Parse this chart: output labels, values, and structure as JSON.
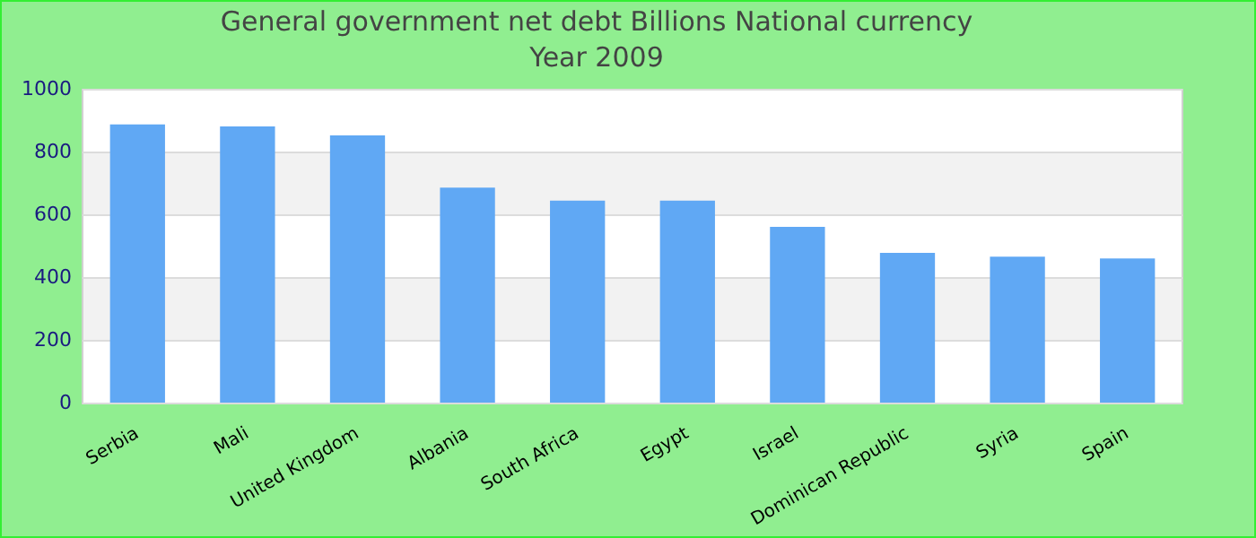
{
  "chart_data": {
    "type": "bar",
    "title": "General government net debt Billions National currency",
    "subtitle": "Year 2009",
    "categories": [
      "Serbia",
      "Mali",
      "United Kingdom",
      "Albania",
      "South Africa",
      "Egypt",
      "Israel",
      "Dominican Republic",
      "Syria",
      "Spain"
    ],
    "values": [
      889,
      883,
      854,
      688,
      646,
      646,
      563,
      480,
      468,
      462
    ],
    "color": "#60a8f4",
    "ylim": [
      0,
      1000
    ],
    "yticks": [
      0,
      200,
      400,
      600,
      800,
      1000
    ],
    "grid": true,
    "legend": false
  }
}
